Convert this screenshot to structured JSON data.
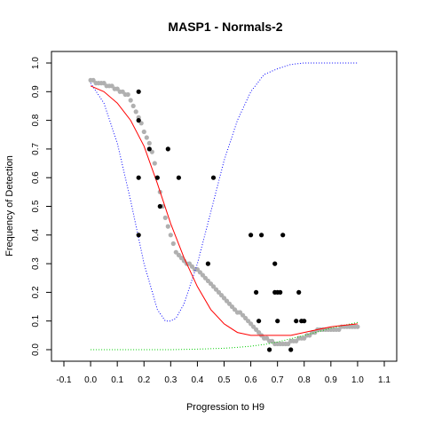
{
  "chart_data": {
    "type": "scatter",
    "title": "MASP1 - Normals-2",
    "xlabel": "Progression to H9",
    "ylabel": "Frequency of Detection",
    "xlim": [
      -0.1,
      1.1
    ],
    "ylim": [
      0.0,
      1.0
    ],
    "x_ticks": [
      "-0.1",
      "0.0",
      "0.1",
      "0.2",
      "0.3",
      "0.4",
      "0.5",
      "0.6",
      "0.7",
      "0.8",
      "0.9",
      "1.0",
      "1.1"
    ],
    "y_ticks": [
      "0.0",
      "0.1",
      "0.2",
      "0.3",
      "0.4",
      "0.5",
      "0.6",
      "0.7",
      "0.8",
      "0.9",
      "1.0"
    ],
    "grid": false,
    "legend": "none",
    "colors": {
      "observed": "#000000",
      "smoothed": "#b0b0b0",
      "fit": "#ff0000",
      "blue_curve": "#0000ff",
      "green_curve": "#00cc00"
    },
    "series": [
      {
        "style": "black-points",
        "x": [
          0.18,
          0.18,
          0.18,
          0.18,
          0.22,
          0.25,
          0.26,
          0.29,
          0.33,
          0.44,
          0.46,
          0.6,
          0.62,
          0.63,
          0.64,
          0.67,
          0.69,
          0.69,
          0.7,
          0.7,
          0.71,
          0.72,
          0.75,
          0.77,
          0.78,
          0.79,
          0.8
        ],
        "y": [
          0.9,
          0.8,
          0.6,
          0.4,
          0.7,
          0.6,
          0.5,
          0.7,
          0.6,
          0.3,
          0.6,
          0.4,
          0.2,
          0.1,
          0.4,
          0.0,
          0.3,
          0.2,
          0.2,
          0.1,
          0.2,
          0.4,
          0.0,
          0.1,
          0.2,
          0.1,
          0.1
        ]
      },
      {
        "style": "grey-points",
        "x": [
          0.0,
          0.01,
          0.02,
          0.03,
          0.04,
          0.05,
          0.06,
          0.07,
          0.08,
          0.09,
          0.1,
          0.11,
          0.12,
          0.13,
          0.14,
          0.15,
          0.16,
          0.17,
          0.18,
          0.19,
          0.2,
          0.21,
          0.22,
          0.23,
          0.24,
          0.25,
          0.26,
          0.27,
          0.28,
          0.29,
          0.3,
          0.31,
          0.32,
          0.33,
          0.34,
          0.35,
          0.36,
          0.37,
          0.38,
          0.39,
          0.4,
          0.41,
          0.42,
          0.43,
          0.44,
          0.45,
          0.46,
          0.47,
          0.48,
          0.49,
          0.5,
          0.51,
          0.52,
          0.53,
          0.54,
          0.55,
          0.56,
          0.57,
          0.58,
          0.59,
          0.6,
          0.61,
          0.62,
          0.63,
          0.64,
          0.65,
          0.66,
          0.67,
          0.68,
          0.69,
          0.7,
          0.71,
          0.72,
          0.73,
          0.74,
          0.75,
          0.76,
          0.77,
          0.78,
          0.79,
          0.8,
          0.81,
          0.82,
          0.83,
          0.84,
          0.85,
          0.86,
          0.87,
          0.88,
          0.89,
          0.9,
          0.91,
          0.92,
          0.93,
          0.94,
          0.95,
          0.96,
          0.97,
          0.98,
          0.99,
          1.0
        ],
        "y": [
          0.94,
          0.94,
          0.93,
          0.93,
          0.93,
          0.93,
          0.92,
          0.92,
          0.92,
          0.91,
          0.91,
          0.9,
          0.9,
          0.89,
          0.89,
          0.87,
          0.85,
          0.83,
          0.81,
          0.79,
          0.76,
          0.74,
          0.72,
          0.69,
          0.65,
          0.6,
          0.55,
          0.5,
          0.46,
          0.43,
          0.4,
          0.37,
          0.34,
          0.33,
          0.32,
          0.31,
          0.3,
          0.3,
          0.29,
          0.28,
          0.28,
          0.27,
          0.26,
          0.25,
          0.24,
          0.23,
          0.22,
          0.21,
          0.2,
          0.19,
          0.18,
          0.17,
          0.16,
          0.15,
          0.14,
          0.13,
          0.13,
          0.12,
          0.11,
          0.1,
          0.09,
          0.08,
          0.07,
          0.06,
          0.05,
          0.04,
          0.04,
          0.03,
          0.03,
          0.02,
          0.02,
          0.02,
          0.02,
          0.02,
          0.02,
          0.03,
          0.03,
          0.03,
          0.04,
          0.04,
          0.04,
          0.05,
          0.05,
          0.06,
          0.06,
          0.07,
          0.07,
          0.07,
          0.07,
          0.07,
          0.07,
          0.07,
          0.07,
          0.07,
          0.08,
          0.08,
          0.08,
          0.08,
          0.08,
          0.08,
          0.08
        ]
      },
      {
        "style": "red-line",
        "x": [
          0.0,
          0.05,
          0.1,
          0.15,
          0.2,
          0.25,
          0.3,
          0.35,
          0.4,
          0.45,
          0.5,
          0.55,
          0.6,
          0.65,
          0.7,
          0.75,
          0.8,
          0.85,
          0.9,
          0.95,
          1.0
        ],
        "y": [
          0.92,
          0.9,
          0.86,
          0.8,
          0.71,
          0.58,
          0.44,
          0.32,
          0.22,
          0.14,
          0.09,
          0.06,
          0.05,
          0.05,
          0.05,
          0.05,
          0.06,
          0.07,
          0.08,
          0.085,
          0.09
        ]
      },
      {
        "style": "blue-dotted-line",
        "x": [
          0.0,
          0.05,
          0.1,
          0.15,
          0.2,
          0.25,
          0.28,
          0.3,
          0.32,
          0.35,
          0.4,
          0.45,
          0.5,
          0.55,
          0.6,
          0.65,
          0.7,
          0.75,
          0.8,
          0.85,
          0.9,
          0.95,
          1.0
        ],
        "y": [
          0.93,
          0.86,
          0.72,
          0.52,
          0.3,
          0.14,
          0.1,
          0.1,
          0.11,
          0.16,
          0.3,
          0.48,
          0.66,
          0.8,
          0.9,
          0.96,
          0.98,
          0.995,
          1.0,
          1.0,
          1.0,
          1.0,
          1.0
        ]
      },
      {
        "style": "green-dotted-line",
        "x": [
          0.0,
          0.1,
          0.2,
          0.3,
          0.4,
          0.5,
          0.55,
          0.6,
          0.65,
          0.7,
          0.75,
          0.8,
          0.85,
          0.9,
          0.95,
          1.0
        ],
        "y": [
          0.0,
          0.0,
          0.0,
          0.0,
          0.002,
          0.005,
          0.008,
          0.012,
          0.018,
          0.027,
          0.038,
          0.05,
          0.062,
          0.075,
          0.085,
          0.095
        ]
      }
    ]
  }
}
